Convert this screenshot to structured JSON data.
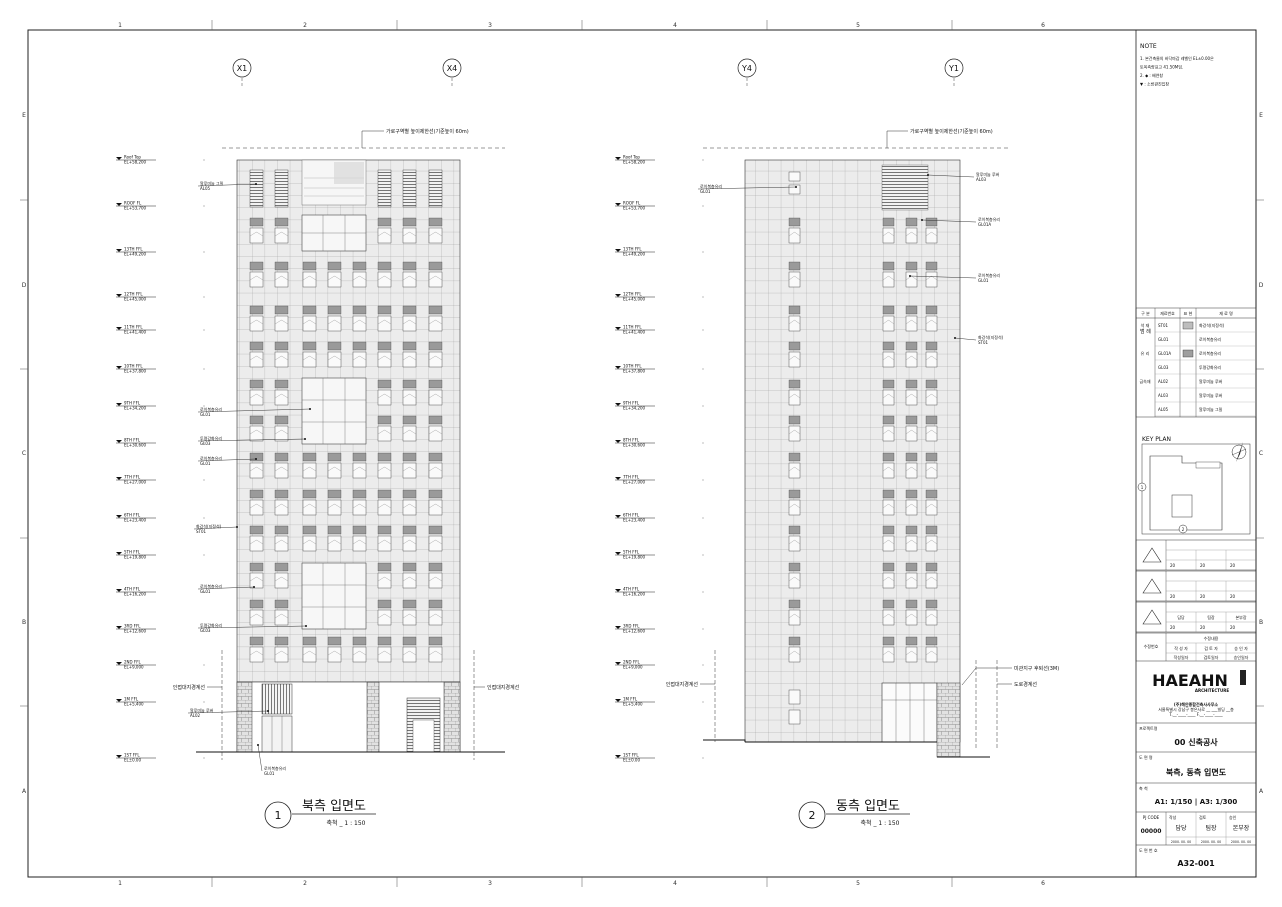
{
  "grid": {
    "columns": [
      "1",
      "2",
      "3",
      "4",
      "5",
      "6"
    ],
    "rows": [
      "E",
      "D",
      "C",
      "B",
      "A"
    ]
  },
  "north": {
    "axis_left": "X1",
    "axis_right": "X4",
    "height_limit_note": "가로구역별 높이제한선(기준높이 60m)",
    "levels": [
      {
        "name": "Roof Top",
        "el": "EL+58,200"
      },
      {
        "name": "ROOF FL",
        "el": "EL+53,700"
      },
      {
        "name": "13TH FFL",
        "el": "EL+49,200"
      },
      {
        "name": "12TH FFL",
        "el": "EL+45,000"
      },
      {
        "name": "11TH FFL",
        "el": "EL+41,400"
      },
      {
        "name": "10TH FFL",
        "el": "EL+37,800"
      },
      {
        "name": "9TH FFL",
        "el": "EL+34,200"
      },
      {
        "name": "8TH FFL",
        "el": "EL+30,600"
      },
      {
        "name": "7TH FFL",
        "el": "EL+27,000"
      },
      {
        "name": "6TH FFL",
        "el": "EL+23,400"
      },
      {
        "name": "5TH FFL",
        "el": "EL+19,800"
      },
      {
        "name": "4TH FFL",
        "el": "EL+16,200"
      },
      {
        "name": "3RD FFL",
        "el": "EL+12,600"
      },
      {
        "name": "2ND FFL",
        "el": "EL+9,000"
      },
      {
        "name": "1M FFL",
        "el": "EL+5,400"
      },
      {
        "name": "1ST FFL",
        "el": "EL±0.00"
      }
    ],
    "annotations": [
      {
        "t": "알루미늄 그릴",
        "c": "AL05"
      },
      {
        "t": "로이복층유리",
        "c": "GL01"
      },
      {
        "t": "투명강화유리",
        "c": "GL03"
      },
      {
        "t": "로이복층유리",
        "c": "GL01"
      },
      {
        "t": "화강석(지정석)",
        "c": "ST01"
      },
      {
        "t": "로이복층유리",
        "c": "GL01"
      },
      {
        "t": "투명강화유리",
        "c": "GL03"
      },
      {
        "t": "알루미늄 루버",
        "c": "AL02"
      },
      {
        "t": "로이복층유리",
        "c": "GL01"
      }
    ],
    "boundary_left": "인접대지경계선",
    "boundary_right": "인접대지경계선",
    "title_number": "1",
    "title": "북측 입면도",
    "scale": "축척 _ 1 : 150"
  },
  "east": {
    "axis_left": "Y4",
    "axis_right": "Y1",
    "height_limit_note": "가로구역별 높이제한선(기준높이 60m)",
    "levels": [
      {
        "name": "Roof Top",
        "el": "EL+58,200"
      },
      {
        "name": "ROOF FL",
        "el": "EL+53,700"
      },
      {
        "name": "13TH FFL",
        "el": "EL+49,200"
      },
      {
        "name": "12TH FFL",
        "el": "EL+45,000"
      },
      {
        "name": "11TH FFL",
        "el": "EL+41,400"
      },
      {
        "name": "10TH FFL",
        "el": "EL+37,800"
      },
      {
        "name": "9TH FFL",
        "el": "EL+34,200"
      },
      {
        "name": "8TH FFL",
        "el": "EL+30,600"
      },
      {
        "name": "7TH FFL",
        "el": "EL+27,000"
      },
      {
        "name": "6TH FFL",
        "el": "EL+23,400"
      },
      {
        "name": "5TH FFL",
        "el": "EL+19,800"
      },
      {
        "name": "4TH FFL",
        "el": "EL+16,200"
      },
      {
        "name": "3RD FFL",
        "el": "EL+12,600"
      },
      {
        "name": "2ND FFL",
        "el": "EL+9,000"
      },
      {
        "name": "1M FFL",
        "el": "EL+5,400"
      },
      {
        "name": "1ST FFL",
        "el": "EL±0.00"
      }
    ],
    "annotations_left": [
      {
        "t": "로이복층유리",
        "c": "GL01"
      }
    ],
    "annotations_right": [
      {
        "t": "알루미늄 루버",
        "c": "AL03"
      },
      {
        "t": "로이복층유리",
        "c": "GL01A"
      },
      {
        "t": "로이복층유리",
        "c": "GL01"
      },
      {
        "t": "화강석(지정석)",
        "c": "ST01"
      }
    ],
    "boundary_left": "인접대지경계선",
    "setback_note": "미관지구 후퇴선(3M)",
    "road_boundary": "도로경계선",
    "title_number": "2",
    "title": "동측 입면도",
    "scale": "축척 _ 1 : 150"
  },
  "notes": {
    "title": "NOTE",
    "lines": [
      "1. 본건축물의 바닥마감 레벨인 EL±0.00은",
      "   토목측량표고 41.50M임.",
      "2. ◆ : 배연창",
      "   ▼ : 소방관진입창"
    ]
  },
  "legend": {
    "title": "범 례",
    "headers": [
      "구 분",
      "재료번호",
      "표 현",
      "재 료 명"
    ],
    "rows": [
      {
        "group": "석 재",
        "code": "ST01",
        "swatch": "#bdbdbd",
        "name": "화강석(지정석)"
      },
      {
        "group": "",
        "code": "GL01",
        "swatch": "",
        "name": "로이복층유리"
      },
      {
        "group": "유 리",
        "code": "GL01A",
        "swatch": "#9e9e9e",
        "name": "로이복층유리"
      },
      {
        "group": "",
        "code": "GL03",
        "swatch": "",
        "name": "투명강화유리"
      },
      {
        "group": "금속재",
        "code": "AL02",
        "swatch": "",
        "name": "알루미늄 루버"
      },
      {
        "group": "",
        "code": "AL03",
        "swatch": "",
        "name": "알루미늄 루버"
      },
      {
        "group": "",
        "code": "AL05",
        "swatch": "",
        "name": "알루미늄 그릴"
      }
    ]
  },
  "key_plan": {
    "title": "KEY PLAN",
    "marker_1": "1",
    "marker_2": "2"
  },
  "revisions": {
    "cell": "20",
    "roles": [
      "담당",
      "팀장",
      "본부장"
    ],
    "content_label": "수정내용",
    "revision_label": "수정번호",
    "authors": [
      "작 성 자",
      "검 토 자",
      "승 인 자"
    ],
    "author_dates": [
      "작성일자",
      "검토일자",
      "승인일자"
    ]
  },
  "company": {
    "logo_main": "HAEAHN",
    "logo_sub": "ARCHITECTURE",
    "name": "(주)해안종합건축사사무소",
    "address": "서울특별시 강남구 봉은사로 __ ___빌딩 __층",
    "contact": "T.__-____-____  F.__-____-____"
  },
  "project": {
    "label": "프로젝트명",
    "name": "00 신축공사"
  },
  "drawing": {
    "label": "도 면 명",
    "name": "북측, 동측 입면도"
  },
  "scale": {
    "label": "축 척",
    "value": "A1: 1/150 | A3: 1/300"
  },
  "sign": {
    "pj_code_label": "PJ CODE",
    "pj_code": "00000",
    "cols": [
      {
        "label": "작성",
        "value": "담당",
        "date": "2000. 00. 00"
      },
      {
        "label": "검토",
        "value": "팀장",
        "date": "2000. 00. 00"
      },
      {
        "label": "승인",
        "value": "본부장",
        "date": "2000. 00. 00"
      }
    ]
  },
  "drawing_number": {
    "label": "도 면 번 호",
    "value": "A32-001"
  }
}
